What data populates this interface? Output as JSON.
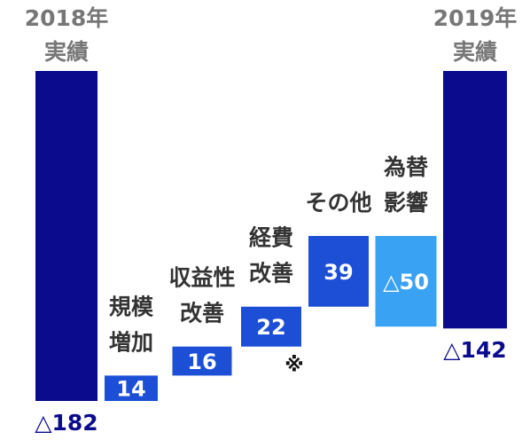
{
  "chart_data": {
    "type": "waterfall",
    "categories": [
      "2018年\n実績",
      "規模\n増加",
      "収益性\n改善",
      "経費\n改善",
      "その他",
      "為替\n影響",
      "2019年\n実績"
    ],
    "measure": [
      "absolute",
      "relative",
      "relative",
      "relative",
      "relative",
      "relative",
      "absolute"
    ],
    "values": [
      -182,
      14,
      16,
      22,
      39,
      -50,
      -142
    ],
    "value_labels": [
      "△182",
      "14",
      "16",
      "22",
      "39",
      "△50",
      "△142"
    ],
    "colors": [
      "#0b0b8e",
      "#1c4fd6",
      "#1c4fd6",
      "#1c4fd6",
      "#1c4fd6",
      "#3aa2f2",
      "#0b0b8e"
    ],
    "annotations": [
      {
        "text": "※",
        "category": "経費\n改善"
      }
    ]
  }
}
